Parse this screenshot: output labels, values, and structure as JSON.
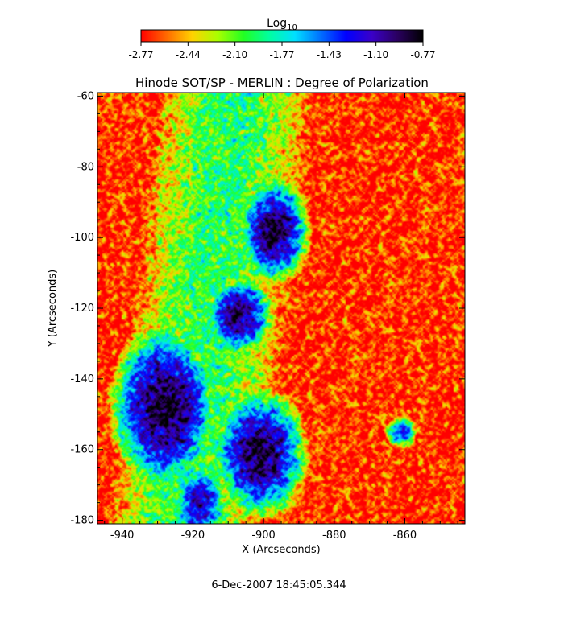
{
  "chart_data": {
    "type": "heatmap",
    "title": "Hinode SOT/SP - MERLIN : Degree of Polarization",
    "xlabel": "X (Arcseconds)",
    "ylabel": "Y (Arcseconds)",
    "xlim": [
      -947,
      -843
    ],
    "ylim": [
      -181,
      -59
    ],
    "xticks": [
      -940,
      -920,
      -900,
      -880,
      -860
    ],
    "yticks": [
      -60,
      -80,
      -100,
      -120,
      -140,
      -160,
      -180
    ],
    "colorbar": {
      "label_base": "Log",
      "label_sub": "10",
      "range": [
        -2.77,
        -0.77
      ],
      "ticks": [
        "-2.77",
        "-2.44",
        "-2.10",
        "-1.77",
        "-1.43",
        "-1.10",
        "-0.77"
      ],
      "colormap": [
        "#ff0000",
        "#ff6a00",
        "#ffd200",
        "#a8ff00",
        "#22ff22",
        "#00ffa0",
        "#00e0ff",
        "#0070ff",
        "#0000ff",
        "#3a00c8",
        "#2a0060",
        "#000000"
      ]
    },
    "regions": [
      {
        "name": "polarized patch",
        "x": -897,
        "y": -98,
        "rx": 6,
        "ry": 9,
        "peak": -0.85
      },
      {
        "name": "polarized patch",
        "x": -907,
        "y": -122,
        "rx": 6,
        "ry": 7,
        "peak": -0.95
      },
      {
        "name": "polarized patch",
        "x": -928,
        "y": -148,
        "rx": 9,
        "ry": 14,
        "peak": -0.8
      },
      {
        "name": "polarized patch",
        "x": -901,
        "y": -161,
        "rx": 8,
        "ry": 11,
        "peak": -0.85
      },
      {
        "name": "polarized patch",
        "x": -918,
        "y": -175,
        "rx": 5,
        "ry": 7,
        "peak": -1.1
      },
      {
        "name": "polarized patch",
        "x": -861,
        "y": -155,
        "rx": 3,
        "ry": 3,
        "peak": -1.3
      }
    ],
    "background_level": -2.7,
    "diffuse_band": {
      "x_center": -915,
      "half_width": 22,
      "level": -1.95
    }
  },
  "footer": {
    "timestamp": "6-Dec-2007 18:45:05.344"
  }
}
